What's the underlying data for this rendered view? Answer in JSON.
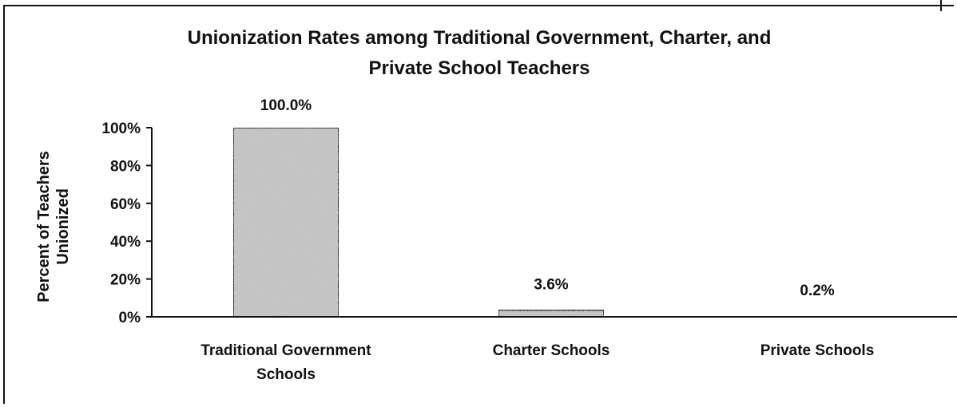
{
  "chart_data": {
    "type": "bar",
    "title": [
      "Unionization Rates among Traditional Government, Charter, and",
      "Private School Teachers"
    ],
    "ylabel": [
      "Percent of Teachers",
      "Unionized"
    ],
    "xlabel": "",
    "categories": [
      [
        "Traditional Government",
        "Schools"
      ],
      [
        "Charter Schools"
      ],
      [
        "Private Schools"
      ]
    ],
    "values": [
      100.0,
      3.6,
      0.2
    ],
    "data_labels": [
      "100.0%",
      "3.6%",
      "0.2%"
    ],
    "ylim": [
      0,
      100
    ],
    "yticks": [
      "0%",
      "20%",
      "40%",
      "60%",
      "80%",
      "100%"
    ],
    "grid": false,
    "legend": "none",
    "bar_fill": "#c8c8c8",
    "bar_stroke": "#111111"
  }
}
